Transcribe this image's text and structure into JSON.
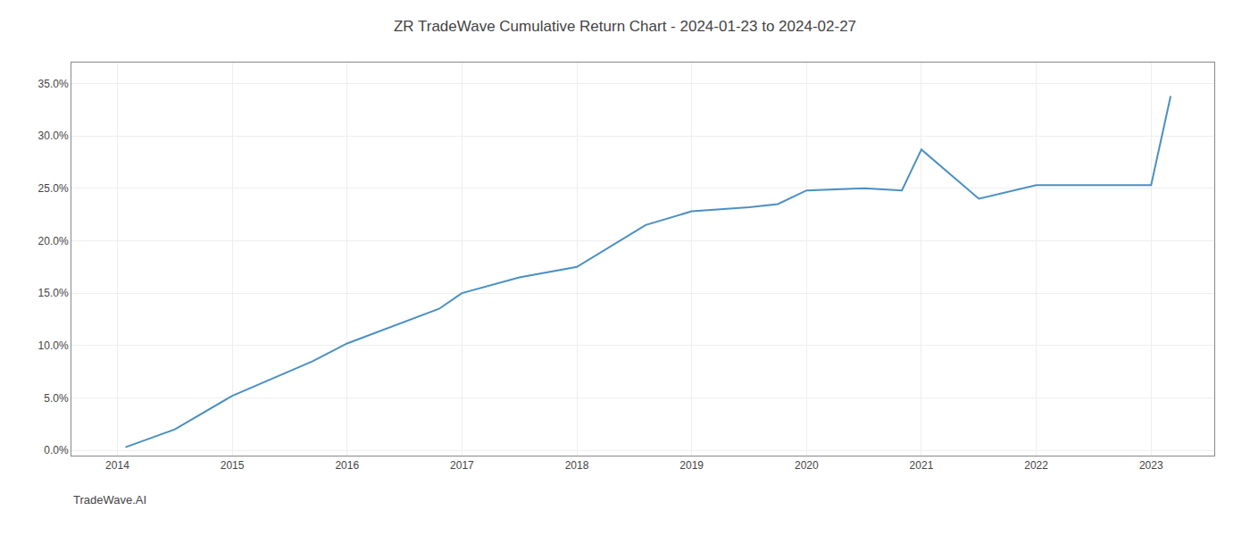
{
  "chart_data": {
    "type": "line",
    "title": "ZR TradeWave Cumulative Return Chart - 2024-01-23 to 2024-02-27",
    "annotations": [
      "TradeWave.AI"
    ],
    "x": [
      2014.07,
      2014.5,
      2015.0,
      2015.7,
      2016.0,
      2016.8,
      2017.0,
      2017.5,
      2018.0,
      2018.6,
      2019.0,
      2019.5,
      2019.75,
      2020.0,
      2020.5,
      2020.83,
      2021.0,
      2021.5,
      2022.0,
      2022.5,
      2023.0,
      2023.17
    ],
    "values": [
      0.3,
      2.0,
      5.2,
      8.5,
      10.2,
      13.5,
      15.0,
      16.5,
      17.5,
      21.5,
      22.8,
      23.2,
      23.5,
      24.8,
      25.0,
      24.8,
      28.7,
      24.0,
      25.3,
      25.3,
      25.3,
      33.8
    ],
    "color": "#4a90c4",
    "xlim": [
      2013.6,
      2023.55
    ],
    "xticks": [
      2014,
      2015,
      2016,
      2017,
      2018,
      2019,
      2020,
      2021,
      2022,
      2023
    ],
    "ylim": [
      -0.5,
      37
    ],
    "yticks": [
      {
        "value": 0,
        "label": "0.0%"
      },
      {
        "value": 5,
        "label": "5.0%"
      },
      {
        "value": 10,
        "label": "10.0%"
      },
      {
        "value": 15,
        "label": "15.0%"
      },
      {
        "value": 20,
        "label": "20.0%"
      },
      {
        "value": 25,
        "label": "25.0%"
      },
      {
        "value": 30,
        "label": "30.0%"
      },
      {
        "value": 35,
        "label": "35.0%"
      }
    ],
    "grid": true
  }
}
